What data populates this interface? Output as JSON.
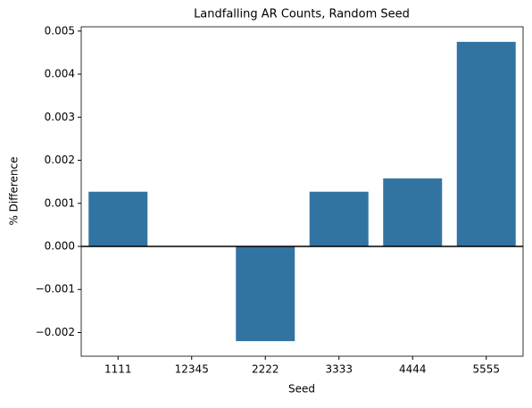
{
  "chart_data": {
    "type": "bar",
    "title": "Landfalling AR Counts, Random Seed",
    "x_label": "Seed",
    "y_label": "% Difference",
    "categories": [
      "1111",
      "12345",
      "2222",
      "3333",
      "4444",
      "5555"
    ],
    "values": [
      0.00127,
      0,
      -0.0022,
      0.00127,
      0.00158,
      0.00475
    ],
    "color": "#3274a1",
    "ylim": [
      -0.00255,
      0.0051
    ],
    "yticks": [
      {
        "value": -0.002,
        "label": "−0.002"
      },
      {
        "value": -0.001,
        "label": "−0.001"
      },
      {
        "value": 0,
        "label": "0.000"
      },
      0.001,
      0.002,
      0.003,
      0.004,
      0.005
    ],
    "reference_line": 0,
    "grid": false
  }
}
